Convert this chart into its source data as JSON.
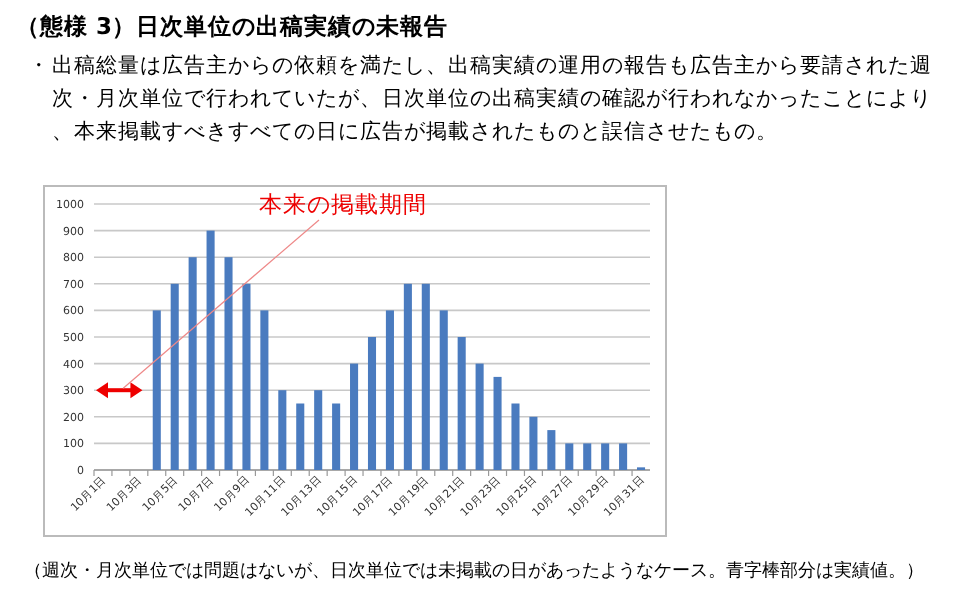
{
  "chart_data": {
    "type": "bar",
    "title": "（態様 3）日次単位の出稿実績の未報告",
    "subtitle": "・出稿総量は広告主からの依頼を満たし、出稿実績の運用の報告も広告主から要請された週次・月次単位で行われていたが、日次単位の出稿実績の確認が行われなかったことにより、本来掲載すべきすべての日に広告が掲載されたものと誤信させたもの。",
    "categories": [
      "10月1日",
      null,
      "10月3日",
      null,
      "10月5日",
      null,
      "10月7日",
      null,
      "10月9日",
      null,
      "10月11日",
      null,
      "10月13日",
      null,
      "10月15日",
      null,
      "10月17日",
      null,
      "10月19日",
      null,
      "10月21日",
      null,
      "10月23日",
      null,
      "10月25日",
      null,
      "10月27日",
      null,
      "10月29日",
      null,
      "10月31日"
    ],
    "values": [
      0,
      0,
      0,
      600,
      700,
      800,
      900,
      800,
      700,
      600,
      300,
      250,
      300,
      250,
      400,
      500,
      600,
      700,
      700,
      600,
      500,
      400,
      350,
      250,
      200,
      150,
      100,
      100,
      100,
      100,
      10
    ],
    "color": "#4a7bbf",
    "ylim": [
      0,
      1000
    ],
    "yticks": [
      0,
      100,
      200,
      300,
      400,
      500,
      600,
      700,
      800,
      900,
      1000
    ],
    "grid": "y",
    "annotations": [
      {
        "text": "本来の掲載期間",
        "x": "10月1日",
        "y": 300
      },
      "（週次・月次単位では問題はないが、日次単位では未掲載の日があったようなケース。青字棒部分は実績値。）"
    ]
  }
}
